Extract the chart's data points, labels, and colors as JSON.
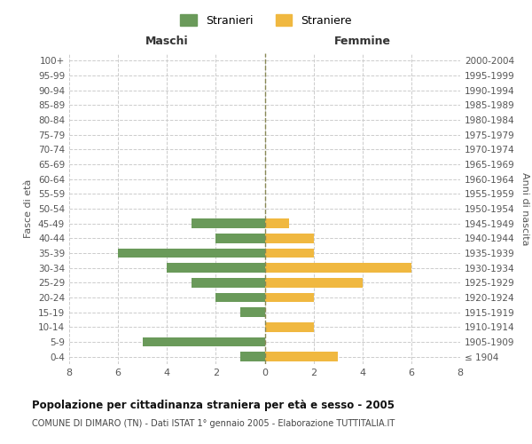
{
  "age_groups": [
    "100+",
    "95-99",
    "90-94",
    "85-89",
    "80-84",
    "75-79",
    "70-74",
    "65-69",
    "60-64",
    "55-59",
    "50-54",
    "45-49",
    "40-44",
    "35-39",
    "30-34",
    "25-29",
    "20-24",
    "15-19",
    "10-14",
    "5-9",
    "0-4"
  ],
  "birth_years": [
    "≤ 1904",
    "1905-1909",
    "1910-1914",
    "1915-1919",
    "1920-1924",
    "1925-1929",
    "1930-1934",
    "1935-1939",
    "1940-1944",
    "1945-1949",
    "1950-1954",
    "1955-1959",
    "1960-1964",
    "1965-1969",
    "1970-1974",
    "1975-1979",
    "1980-1984",
    "1985-1989",
    "1990-1994",
    "1995-1999",
    "2000-2004"
  ],
  "stranieri": [
    0,
    0,
    0,
    0,
    0,
    0,
    0,
    0,
    0,
    0,
    0,
    3,
    2,
    6,
    4,
    3,
    2,
    1,
    0,
    5,
    1
  ],
  "straniere": [
    0,
    0,
    0,
    0,
    0,
    0,
    0,
    0,
    0,
    0,
    0,
    1,
    2,
    2,
    6,
    4,
    2,
    0,
    2,
    0,
    3
  ],
  "male_color": "#6a9a5a",
  "female_color": "#f0b840",
  "title": "Popolazione per cittadinanza straniera per età e sesso - 2005",
  "subtitle": "COMUNE DI DIMARO (TN) - Dati ISTAT 1° gennaio 2005 - Elaborazione TUTTITALIA.IT",
  "xlabel_left": "Maschi",
  "xlabel_right": "Femmine",
  "ylabel_left": "Fasce di età",
  "ylabel_right": "Anni di nascita",
  "legend_male": "Stranieri",
  "legend_female": "Straniere",
  "xlim": 8,
  "background_color": "#ffffff",
  "grid_color": "#cccccc"
}
